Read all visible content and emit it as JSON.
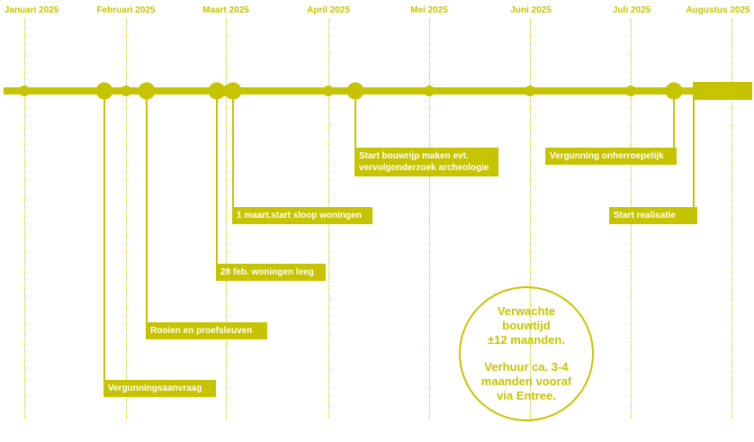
{
  "months": [
    "Januari 2025",
    "Februari 2025",
    "Maart 2025",
    "April 2025",
    "Mei 2025",
    "Juni 2025",
    "Juli 2025",
    "Augustus 2025"
  ],
  "milestones": {
    "vergunningsaanvraag": "Vergunningsaanvraag",
    "rooien": "Rooien en proefsleuven",
    "woningen_leeg": "28 feb. woningen leeg",
    "sloop": "1 maart.start sloop woningen",
    "bouwrijp": "Start bouwrijp maken evt.\nvervolgonderzoek archeologie",
    "onherroepelijk": "Vergunning onherroepelijk",
    "realisatie": "Start realisatie"
  },
  "note": {
    "line1": "Verwachte\nbouwtijd\n±12 maanden.",
    "line2": "Verhuur ca. 3-4\nmaanden vooraf\nvia Entree."
  },
  "colors": {
    "accent": "#c6c400",
    "text_on_accent": "#ffffff"
  }
}
